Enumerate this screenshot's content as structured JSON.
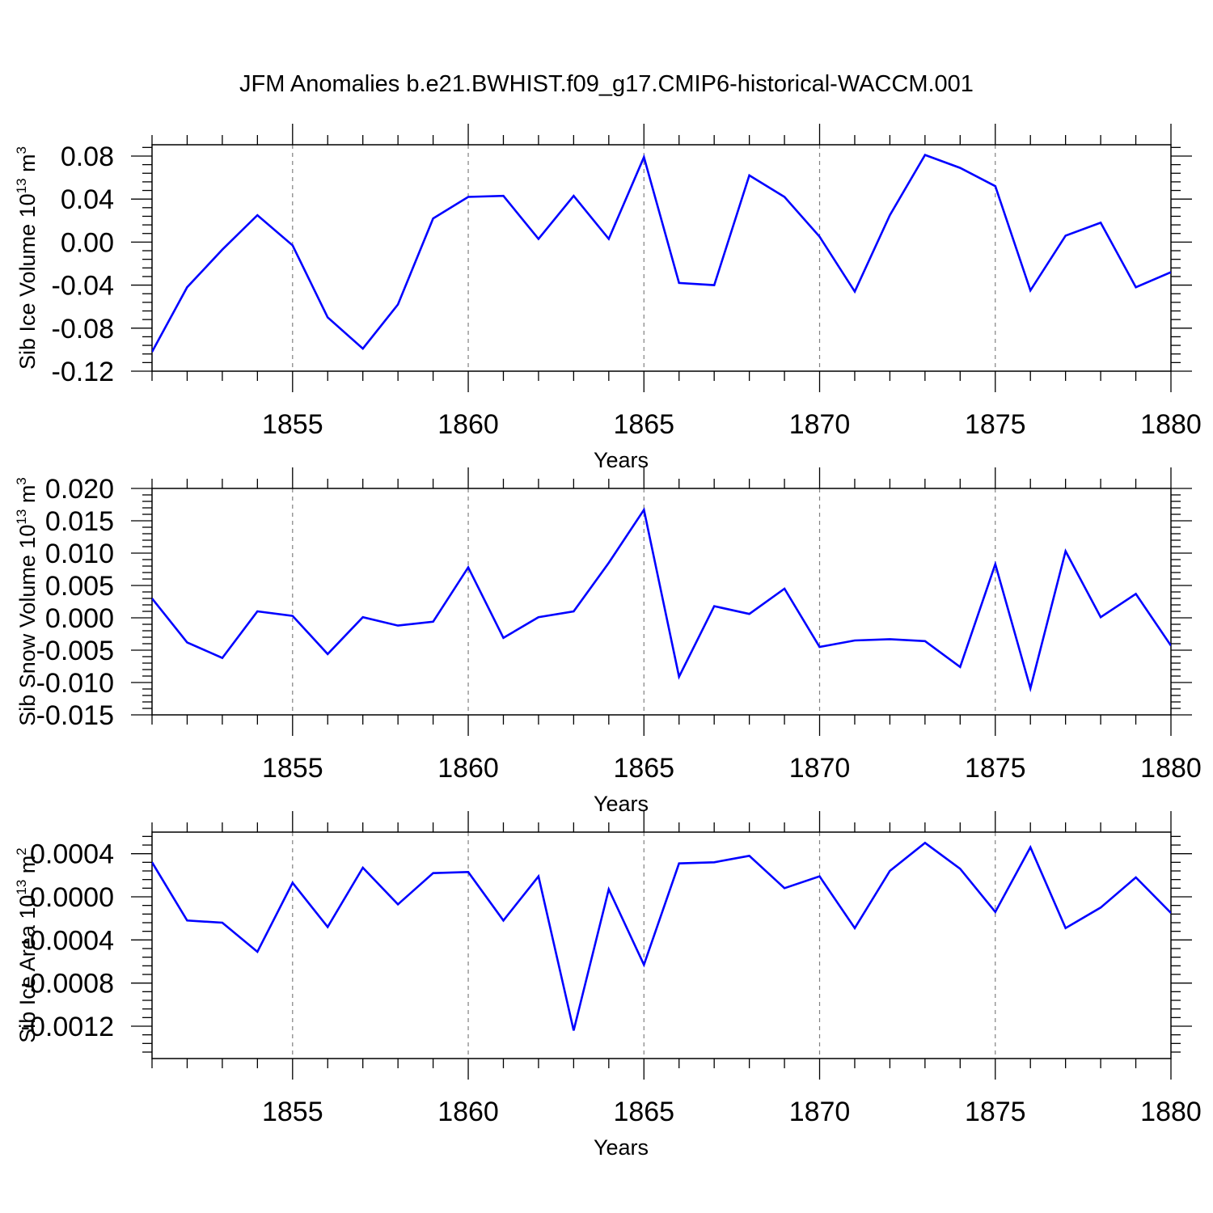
{
  "title": "JFM Anomalies b.e21.BWHIST.f09_g17.CMIP6-historical-WACCM.001",
  "colors": {
    "series": "#0000ff",
    "axis": "#000000",
    "grid": "#808080",
    "background": "#ffffff"
  },
  "chart_data": [
    {
      "type": "line",
      "name": "ice-volume",
      "ylabel": "Sib Ice Volume 10",
      "ylabel_exp": "13",
      "ylabel_unit": " m",
      "ylabel_unit_exp": "3",
      "xlabel": "Years",
      "xlim": [
        1851,
        1880
      ],
      "ylim": [
        -0.12,
        0.0905
      ],
      "yticks": [
        -0.12,
        -0.08,
        -0.04,
        0.0,
        0.04,
        0.08
      ],
      "ytick_labels": [
        "-0.12",
        "-0.08",
        "-0.04",
        "0.00",
        "0.04",
        "0.08"
      ],
      "xticks": [
        1855,
        1860,
        1865,
        1870,
        1875,
        1880
      ],
      "xtick_labels": [
        "1855",
        "1860",
        "1865",
        "1870",
        "1875",
        "1880"
      ],
      "x": [
        1851,
        1852,
        1853,
        1854,
        1855,
        1856,
        1857,
        1858,
        1859,
        1860,
        1861,
        1862,
        1863,
        1864,
        1865,
        1866,
        1867,
        1868,
        1869,
        1870,
        1871,
        1872,
        1873,
        1874,
        1875,
        1876,
        1877,
        1878,
        1879,
        1880
      ],
      "values": [
        -0.102,
        -0.042,
        -0.007,
        0.025,
        -0.003,
        -0.07,
        -0.099,
        -0.058,
        0.022,
        0.042,
        0.043,
        0.003,
        0.043,
        0.003,
        0.079,
        -0.038,
        -0.04,
        0.062,
        0.042,
        0.005,
        -0.046,
        0.025,
        0.081,
        0.069,
        0.052,
        -0.045,
        0.006,
        0.018,
        -0.042,
        -0.028
      ]
    },
    {
      "type": "line",
      "name": "snow-volume",
      "ylabel": "Sib Snow Volume 10",
      "ylabel_exp": "13",
      "ylabel_unit": " m",
      "ylabel_unit_exp": "3",
      "xlabel": "Years",
      "xlim": [
        1851,
        1880
      ],
      "ylim": [
        -0.015,
        0.02
      ],
      "yticks": [
        -0.015,
        -0.01,
        -0.005,
        0.0,
        0.005,
        0.01,
        0.015,
        0.02
      ],
      "ytick_labels": [
        "-0.015",
        "-0.010",
        "-0.005",
        "0.000",
        "0.005",
        "0.010",
        "0.015",
        "0.020"
      ],
      "xticks": [
        1855,
        1860,
        1865,
        1870,
        1875,
        1880
      ],
      "xtick_labels": [
        "1855",
        "1860",
        "1865",
        "1870",
        "1875",
        "1880"
      ],
      "x": [
        1851,
        1852,
        1853,
        1854,
        1855,
        1856,
        1857,
        1858,
        1859,
        1860,
        1861,
        1862,
        1863,
        1864,
        1865,
        1866,
        1867,
        1868,
        1869,
        1870,
        1871,
        1872,
        1873,
        1874,
        1875,
        1876,
        1877,
        1878,
        1879,
        1880
      ],
      "values": [
        0.003,
        -0.0038,
        -0.0062,
        0.001,
        0.0003,
        -0.0056,
        0.0001,
        -0.0012,
        -0.0006,
        0.0078,
        -0.0031,
        0.0001,
        0.001,
        0.0085,
        0.0167,
        -0.0091,
        0.0018,
        0.0006,
        0.0045,
        -0.0045,
        -0.0035,
        -0.0033,
        -0.0036,
        -0.0076,
        0.0083,
        -0.0109,
        0.0103,
        0.0001,
        0.0037,
        -0.0043
      ]
    },
    {
      "type": "line",
      "name": "ice-area",
      "ylabel": "Sib Ice Area 10",
      "ylabel_exp": "13",
      "ylabel_unit": " m",
      "ylabel_unit_exp": "2",
      "xlabel": "Years",
      "xlim": [
        1851,
        1880
      ],
      "ylim": [
        -0.0015,
        0.0006
      ],
      "yticks": [
        -0.0012,
        -0.0008,
        -0.0004,
        0.0,
        0.0004
      ],
      "ytick_labels": [
        "-0.0012",
        "-0.0008",
        "-0.0004",
        "0.0000",
        "0.0004"
      ],
      "xticks": [
        1855,
        1860,
        1865,
        1870,
        1875,
        1880
      ],
      "xtick_labels": [
        "1855",
        "1860",
        "1865",
        "1870",
        "1875",
        "1880"
      ],
      "x": [
        1851,
        1852,
        1853,
        1854,
        1855,
        1856,
        1857,
        1858,
        1859,
        1860,
        1861,
        1862,
        1863,
        1864,
        1865,
        1866,
        1867,
        1868,
        1869,
        1870,
        1871,
        1872,
        1873,
        1874,
        1875,
        1876,
        1877,
        1878,
        1879,
        1880
      ],
      "values": [
        0.00032,
        -0.00022,
        -0.00024,
        -0.00051,
        0.00013,
        -0.00028,
        0.00027,
        -7e-05,
        0.00022,
        0.00023,
        -0.00022,
        0.00019,
        -0.00124,
        7e-05,
        -0.00063,
        0.00031,
        0.00032,
        0.00038,
        8e-05,
        0.00019,
        -0.00029,
        0.00024,
        0.0005,
        0.00026,
        -0.00014,
        0.00046,
        -0.00029,
        -0.0001,
        0.00018,
        -0.00015
      ]
    }
  ]
}
